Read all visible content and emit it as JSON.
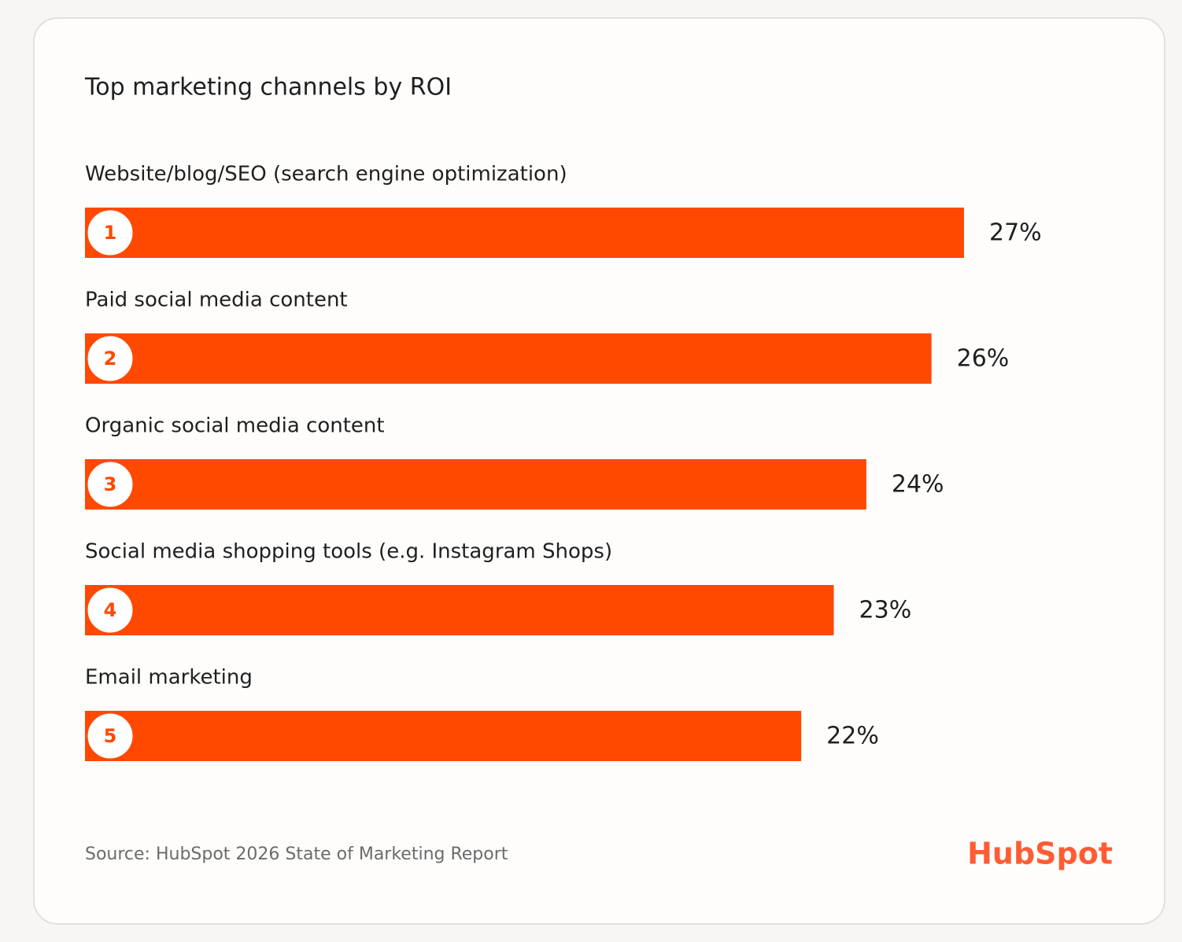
{
  "chart_data": {
    "type": "bar",
    "title": "Top marketing channels by ROI",
    "categories": [
      "Website/blog/SEO (search engine optimization)",
      "Paid social media content",
      "Organic social media content",
      "Social media shopping tools (e.g. Instagram Shops)",
      "Email marketing"
    ],
    "values": [
      27,
      26,
      24,
      23,
      22
    ],
    "value_labels": [
      "27%",
      "26%",
      "24%",
      "23%",
      "22%"
    ],
    "ranks": [
      1,
      2,
      3,
      4,
      5
    ],
    "color": "#ff4800",
    "source": "Source: HubSpot 2026 State of Marketing Report",
    "logo": "HubSpot"
  }
}
